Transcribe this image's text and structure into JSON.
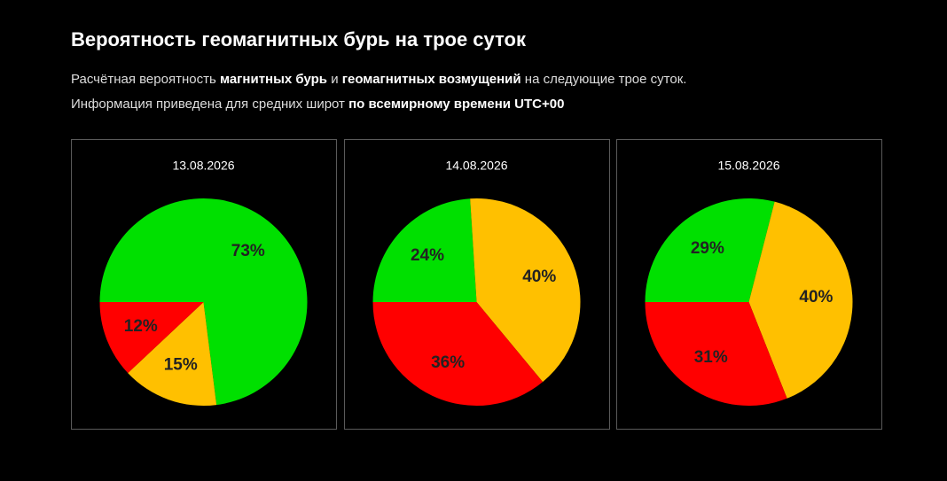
{
  "header": {
    "title": "Вероятность геомагнитных бурь на трое суток",
    "line1": [
      "Расчётная вероятность ",
      "магнитных бурь",
      " и ",
      "геомагнитных возмущений",
      " на следующие трое суток."
    ],
    "line2": [
      "Информация приведена для средних широт ",
      "по всемирному времени UTC+00"
    ]
  },
  "chart_data": [
    {
      "type": "pie",
      "title": "13.08.2026",
      "values": [
        73,
        15,
        12
      ],
      "value_labels": [
        "73%",
        "15%",
        "12%"
      ],
      "colors": [
        "#00e000",
        "#ffc000",
        "#ff0000"
      ]
    },
    {
      "type": "pie",
      "title": "14.08.2026",
      "values": [
        24,
        40,
        36
      ],
      "value_labels": [
        "24%",
        "40%",
        "36%"
      ],
      "colors": [
        "#00e000",
        "#ffc000",
        "#ff0000"
      ]
    },
    {
      "type": "pie",
      "title": "15.08.2026",
      "values": [
        29,
        40,
        31
      ],
      "value_labels": [
        "29%",
        "40%",
        "31%"
      ],
      "colors": [
        "#00e000",
        "#ffc000",
        "#ff0000"
      ]
    }
  ]
}
